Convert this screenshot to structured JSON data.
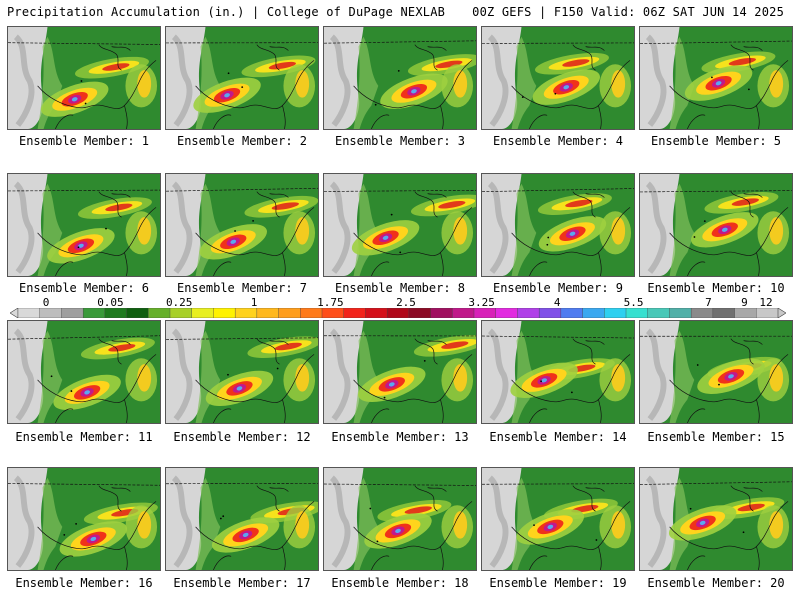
{
  "header": {
    "left": "Precipitation Accumulation (in.) | College of DuPage NEXLAB",
    "right": "00Z GEFS | F150 Valid: 06Z SAT JUN 14 2025"
  },
  "caption_prefix": "Ensemble Member: ",
  "members": [
    "1",
    "2",
    "3",
    "4",
    "5",
    "6",
    "7",
    "8",
    "9",
    "10",
    "11",
    "12",
    "13",
    "14",
    "15",
    "16",
    "17",
    "18",
    "19",
    "20"
  ],
  "colorbar": {
    "labels": [
      "0",
      "0.05",
      "0.25",
      "1",
      "1.75",
      "2.5",
      "3.25",
      "4",
      "5.5",
      "7",
      "9",
      "12"
    ],
    "colors": [
      "#d9d9d9",
      "#bdbdbd",
      "#9f9f9f",
      "#3a9a3a",
      "#1f7a1f",
      "#0f5f0f",
      "#66b02a",
      "#a8d028",
      "#e8ef20",
      "#fff200",
      "#ffd21c",
      "#ffb81c",
      "#ff9e1c",
      "#ff7a1a",
      "#ff4f1a",
      "#f2241b",
      "#d4101a",
      "#b0081a",
      "#8c0a25",
      "#a01060",
      "#c0188a",
      "#d820b8",
      "#e22ae0",
      "#b040e8",
      "#8050e8",
      "#4f7cf0",
      "#3aa8f0",
      "#2ed0f0",
      "#36e0d0",
      "#48c8b8",
      "#50b0a8",
      "#8a8a8a",
      "#707070",
      "#a8a8a8",
      "#c8c8c8"
    ],
    "labelPositions": [
      0,
      0.0895,
      0.185,
      0.289,
      0.395,
      0.5,
      0.605,
      0.71,
      0.816,
      0.92,
      0.97,
      1.0
    ]
  }
}
